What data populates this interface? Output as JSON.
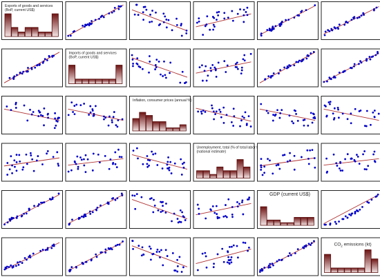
{
  "chart_data": {
    "type": "scatter",
    "layout": "scatterplot-matrix",
    "colors": {
      "point": "#0000c8",
      "fit_line": "#b03030",
      "bar_dark": "#6e1414",
      "bar_light": "#f4e6e6",
      "frame": "#222222"
    },
    "variables": [
      {
        "label_lines": [
          "Exports of goods and services",
          "(BoP, current US$)"
        ],
        "histogram": [
          5,
          2,
          1,
          2,
          2,
          1,
          1,
          5
        ]
      },
      {
        "label_lines": [
          "Imports of goods and services",
          "(BoP, current US$)"
        ],
        "histogram": [
          4,
          1,
          1,
          1,
          1,
          1,
          1,
          4
        ]
      },
      {
        "label_lines": [
          "Inflation, consumer prices (annual %)"
        ],
        "histogram": [
          4,
          6,
          5,
          3,
          3,
          1,
          1,
          2
        ]
      },
      {
        "label_lines": [
          "Unemployment, total (% of total labor force)",
          "(national estimate)"
        ],
        "histogram": [
          2,
          2,
          1,
          3,
          2,
          2,
          5,
          3
        ]
      },
      {
        "label_lines": [
          "GDP (current US$)"
        ],
        "histogram": [
          7,
          2,
          2,
          1,
          1,
          3,
          3,
          3
        ]
      },
      {
        "label_lines": [
          "CO",
          "2",
          " emissions (kt)"
        ],
        "label_has_subscript": true,
        "histogram": [
          4,
          1,
          1,
          1,
          1,
          1,
          5,
          3
        ]
      }
    ],
    "cells": [
      [
        null,
        {
          "pattern": "linear",
          "slope": 0.95
        },
        {
          "pattern": "negative",
          "slope": -0.65
        },
        {
          "pattern": "weak_positive",
          "slope": 0.4
        },
        {
          "pattern": "linear",
          "slope": 0.9
        },
        {
          "pattern": "linear",
          "slope": 0.85
        }
      ],
      [
        {
          "pattern": "linear",
          "slope": 0.95
        },
        null,
        {
          "pattern": "negative",
          "slope": -0.6
        },
        {
          "pattern": "weak_positive",
          "slope": 0.35
        },
        {
          "pattern": "linear",
          "slope": 0.95
        },
        {
          "pattern": "linear",
          "slope": 0.9
        }
      ],
      [
        {
          "pattern": "negative",
          "slope": -0.35
        },
        {
          "pattern": "negative",
          "slope": -0.35
        },
        null,
        {
          "pattern": "negative",
          "slope": -0.4
        },
        {
          "pattern": "negative",
          "slope": -0.35
        },
        {
          "pattern": "negative",
          "slope": -0.35
        }
      ],
      [
        {
          "pattern": "weak_positive",
          "slope": 0.25
        },
        {
          "pattern": "weak_positive",
          "slope": 0.2
        },
        {
          "pattern": "negative",
          "slope": -0.45
        },
        null,
        {
          "pattern": "weak_positive",
          "slope": 0.25
        },
        {
          "pattern": "weak_positive",
          "slope": 0.2
        }
      ],
      [
        {
          "pattern": "linear",
          "slope": 0.9
        },
        {
          "pattern": "linear",
          "slope": 0.9
        },
        {
          "pattern": "negative",
          "slope": -0.6
        },
        {
          "pattern": "weak_positive",
          "slope": 0.35
        },
        null,
        {
          "pattern": "curved",
          "slope": 0.9
        }
      ],
      [
        {
          "pattern": "linear",
          "slope": 0.85
        },
        {
          "pattern": "linear",
          "slope": 0.9
        },
        {
          "pattern": "negative",
          "slope": -0.65
        },
        {
          "pattern": "weak_positive",
          "slope": 0.45
        },
        {
          "pattern": "linear",
          "slope": 0.9
        },
        null
      ]
    ]
  }
}
